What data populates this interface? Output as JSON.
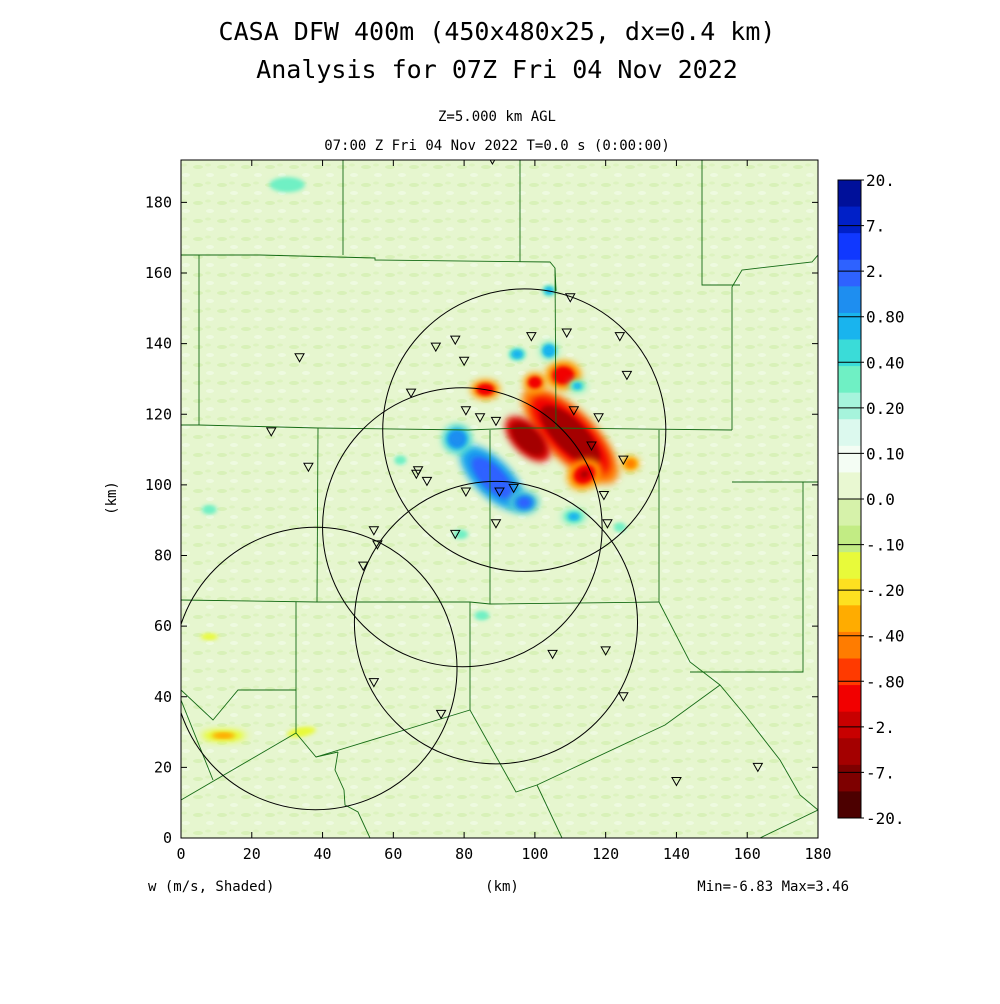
{
  "title_line1": "CASA DFW 400m (450x480x25, dx=0.4 km)",
  "title_line2": "Analysis for 07Z Fri 04 Nov 2022",
  "subtitle_level": "Z=5.000 km AGL",
  "subtitle_time": "07:00 Z Fri 04 Nov 2022    T=0.0 s (0:00:00)",
  "footer_variable": "w (m/s, Shaded)",
  "footer_minmax": "Min=-6.83 Max=3.46",
  "chart_data": {
    "type": "heatmap",
    "variable": "w (m/s, Shaded)",
    "xlabel": "(km)",
    "ylabel": "(km)",
    "xlim": [
      0,
      180
    ],
    "ylim": [
      0,
      192
    ],
    "xticks": [
      0,
      20,
      40,
      60,
      80,
      100,
      120,
      140,
      160,
      180
    ],
    "yticks": [
      0,
      20,
      40,
      60,
      80,
      100,
      120,
      140,
      160,
      180
    ],
    "min": -6.83,
    "max": 3.46,
    "colorbar": {
      "labels": [
        "20.",
        "7.",
        "2.",
        "0.80",
        "0.40",
        "0.20",
        "0.10",
        "0.0",
        "-.10",
        "-.20",
        "-.40",
        "-.80",
        "-2.",
        "-7.",
        "-20."
      ],
      "colors": [
        "#00109a",
        "#0020c8",
        "#1038ff",
        "#2e62ff",
        "#1e8ef0",
        "#19b4ee",
        "#3adcd8",
        "#6ff0c4",
        "#a6f4dc",
        "#dcf9ee",
        "#f4fdf4",
        "#e9f8d2",
        "#d6f2aa",
        "#c2ec84",
        "#e8fa3a",
        "#fde020",
        "#ffac00",
        "#ff7c00",
        "#ff3a00",
        "#f20000",
        "#c80000",
        "#a40000",
        "#7e0000",
        "#4c0000"
      ]
    },
    "radar_rings": [
      {
        "center": [
          97,
          115.5
        ],
        "radius": 40
      },
      {
        "center": [
          79.5,
          88
        ],
        "radius": 39.5
      },
      {
        "center": [
          38,
          48
        ],
        "radius": 40
      },
      {
        "center": [
          89,
          61
        ],
        "radius": 40
      }
    ],
    "stations": [
      [
        88,
        192
      ],
      [
        110,
        153
      ],
      [
        99,
        142
      ],
      [
        109,
        143
      ],
      [
        124,
        142
      ],
      [
        77.5,
        141
      ],
      [
        72,
        139
      ],
      [
        33.5,
        136
      ],
      [
        80,
        135
      ],
      [
        126,
        131
      ],
      [
        65,
        126
      ],
      [
        111,
        121
      ],
      [
        80.5,
        121
      ],
      [
        84.5,
        119
      ],
      [
        89,
        118
      ],
      [
        118,
        119
      ],
      [
        25.5,
        115
      ],
      [
        116,
        111
      ],
      [
        125,
        107
      ],
      [
        36,
        105
      ],
      [
        67,
        104
      ],
      [
        66.5,
        103
      ],
      [
        69.5,
        101
      ],
      [
        94,
        99
      ],
      [
        90,
        98
      ],
      [
        80.5,
        98
      ],
      [
        119.5,
        97
      ],
      [
        89,
        89
      ],
      [
        54.5,
        87
      ],
      [
        77.5,
        86
      ],
      [
        55.5,
        83
      ],
      [
        51.5,
        77
      ],
      [
        120.5,
        89
      ],
      [
        120,
        53
      ],
      [
        105,
        52
      ],
      [
        54.5,
        44
      ],
      [
        125,
        40
      ],
      [
        73.5,
        35
      ],
      [
        140,
        16
      ],
      [
        163,
        20
      ]
    ],
    "cells": [
      {
        "x": 110,
        "y": 114,
        "rx": 7,
        "ry": 18,
        "rot": -45,
        "w": -3.5
      },
      {
        "x": 98,
        "y": 113,
        "rx": 4,
        "ry": 8,
        "rot": -45,
        "w": -6.5
      },
      {
        "x": 108,
        "y": 131,
        "rx": 5,
        "ry": 4,
        "rot": 0,
        "w": -1.6
      },
      {
        "x": 100,
        "y": 129,
        "rx": 3,
        "ry": 2.5,
        "rot": 0,
        "w": -1.5
      },
      {
        "x": 86,
        "y": 127,
        "rx": 4,
        "ry": 2.5,
        "rot": 0,
        "w": -1.5
      },
      {
        "x": 114,
        "y": 103,
        "rx": 5,
        "ry": 4,
        "rot": -30,
        "w": -2.2
      },
      {
        "x": 127,
        "y": 106,
        "rx": 3,
        "ry": 2.5,
        "rot": 0,
        "w": -0.6
      },
      {
        "x": 88,
        "y": 102,
        "rx": 5,
        "ry": 12,
        "rot": -45,
        "w": 2.0
      },
      {
        "x": 97,
        "y": 95,
        "rx": 4,
        "ry": 3,
        "rot": 0,
        "w": 1.2
      },
      {
        "x": 78,
        "y": 113,
        "rx": 4,
        "ry": 4,
        "rot": 0,
        "w": 0.8
      },
      {
        "x": 104,
        "y": 138,
        "rx": 3,
        "ry": 3,
        "rot": 0,
        "w": 0.35
      },
      {
        "x": 112,
        "y": 128,
        "rx": 3,
        "ry": 2,
        "rot": 0,
        "w": 0.3
      },
      {
        "x": 111,
        "y": 91,
        "rx": 4,
        "ry": 2.5,
        "rot": 0,
        "w": 0.3
      },
      {
        "x": 104,
        "y": 155,
        "rx": 3,
        "ry": 2.5,
        "rot": 0,
        "w": 0.25
      },
      {
        "x": 95,
        "y": 137,
        "rx": 4,
        "ry": 3,
        "rot": 0,
        "w": 0.25
      },
      {
        "x": 79,
        "y": 86,
        "rx": 5,
        "ry": 3,
        "rot": 0,
        "w": 0.15
      },
      {
        "x": 62,
        "y": 107,
        "rx": 4,
        "ry": 3,
        "rot": 0,
        "w": 0.15
      },
      {
        "x": 124,
        "y": 88,
        "rx": 4,
        "ry": 3,
        "rot": 0,
        "w": 0.12
      },
      {
        "x": 30,
        "y": 185,
        "rx": 12,
        "ry": 5,
        "rot": 0,
        "w": 0.12
      },
      {
        "x": 85,
        "y": 63,
        "rx": 5,
        "ry": 3,
        "rot": 0,
        "w": 0.12
      },
      {
        "x": 8,
        "y": 93,
        "rx": 5,
        "ry": 3,
        "rot": 0,
        "w": 0.12
      },
      {
        "x": 12,
        "y": 29,
        "rx": 8,
        "ry": 2,
        "rot": 0,
        "w": -0.3
      },
      {
        "x": 8,
        "y": 57,
        "rx": 6,
        "ry": 2,
        "rot": 0,
        "w": -0.15
      },
      {
        "x": 34,
        "y": 30,
        "rx": 10,
        "ry": 3,
        "rot": -10,
        "w": -0.12
      }
    ]
  }
}
